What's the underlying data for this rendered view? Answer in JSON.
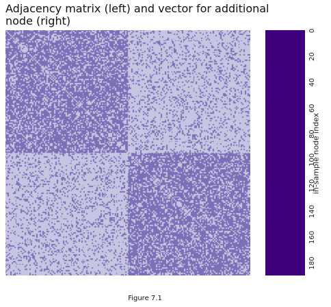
{
  "title": "Adjacency matrix (left) and vector for additional node (right)",
  "caption": "Figure 7.1",
  "colors": {
    "edge": "#7b70b7",
    "no_edge": "#c7c6e2",
    "vector_edge": "#3f007d",
    "vector_no_edge": "#fcfbfd"
  },
  "chart_data": [
    {
      "type": "heatmap",
      "title": "Adjacency matrix (left) and vector for additional node (right)",
      "n_nodes": 190,
      "communities": [
        {
          "start": 0,
          "end": 94
        },
        {
          "start": 95,
          "end": 189
        }
      ],
      "within_block_edge_probability": 0.7,
      "between_block_edge_probability": 0.2,
      "values": [
        0,
        1
      ],
      "legend": "none"
    },
    {
      "type": "heatmap",
      "ylabel": "in-sample node index",
      "y_ticks": [
        0,
        20,
        40,
        60,
        80,
        100,
        120,
        140,
        160,
        180
      ],
      "ylim": [
        0,
        189
      ],
      "connected_nodes": [
        0,
        1,
        2,
        3,
        4,
        5,
        6,
        7,
        8,
        9,
        10,
        11,
        12,
        13,
        14,
        15,
        16,
        17,
        18,
        19,
        20,
        21,
        22,
        23,
        24,
        25,
        26,
        27,
        28,
        29,
        30,
        31,
        32,
        33,
        34,
        35,
        36,
        37,
        38,
        39,
        40,
        41,
        42,
        43,
        44,
        45,
        46,
        47,
        48,
        49,
        50,
        51,
        52,
        53,
        54,
        55,
        56,
        57,
        58,
        59,
        60,
        61,
        62,
        63,
        64,
        65,
        66,
        67,
        68,
        69,
        70,
        71,
        72,
        73,
        74,
        75,
        76,
        77,
        78,
        79,
        80,
        81,
        82,
        83,
        84,
        85,
        86,
        87,
        88,
        89,
        90,
        91,
        92,
        93,
        94,
        95,
        96,
        97,
        98,
        99,
        100,
        101,
        102,
        103,
        104,
        105,
        106,
        107,
        108,
        109,
        110,
        111,
        112,
        113,
        114,
        115,
        116,
        117,
        118,
        119,
        120,
        121,
        122,
        123,
        124,
        125,
        126,
        127,
        128,
        129,
        130,
        131,
        132,
        133,
        134,
        135,
        136,
        137,
        138,
        139,
        140,
        141,
        142,
        143,
        144,
        145,
        146,
        147,
        148,
        149,
        150,
        151,
        152,
        153,
        154,
        155,
        156,
        157,
        158,
        159,
        160,
        161,
        162,
        163,
        164,
        165,
        166,
        167,
        168,
        169,
        170,
        171,
        172,
        173,
        174,
        175,
        176,
        177,
        178,
        179,
        180,
        181,
        182,
        183,
        184,
        185,
        186,
        187,
        188,
        189
      ]
    }
  ]
}
